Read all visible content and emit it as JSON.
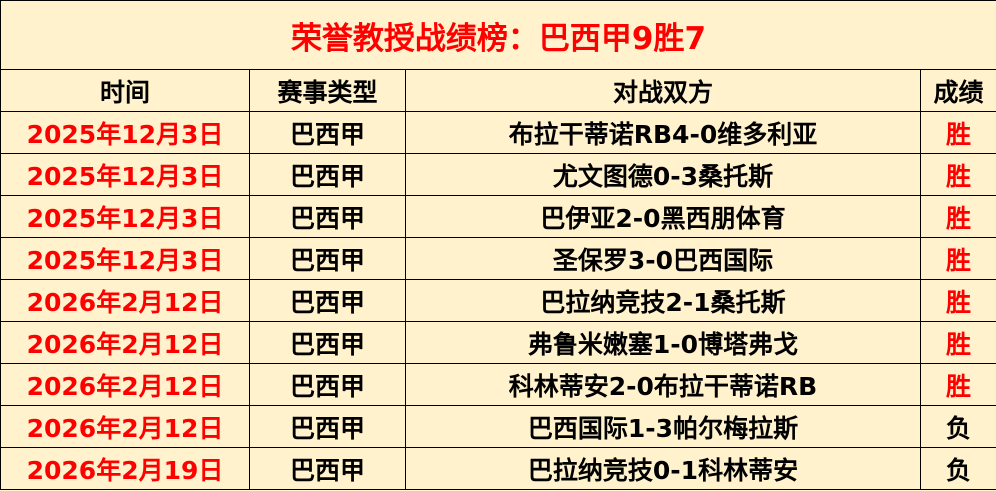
{
  "title": "荣誉教授战绩榜：巴西甲9胜7",
  "headers": [
    "时间",
    "赛事类型",
    "对战双方",
    "成绩"
  ],
  "rows": [
    {
      "date": "2025年12月3日",
      "league": "巴西甲",
      "match": "布拉干蒂诺RB4-0维多利亚",
      "result": "胜"
    },
    {
      "date": "2025年12月3日",
      "league": "巴西甲",
      "match": "尤文图德0-3桑托斯",
      "result": "胜"
    },
    {
      "date": "2025年12月3日",
      "league": "巴西甲",
      "match": "巴伊亚2-0黑西朋体育",
      "result": "胜"
    },
    {
      "date": "2025年12月3日",
      "league": "巴西甲",
      "match": "圣保罗3-0巴西国际",
      "result": "胜"
    },
    {
      "date": "2026年2月12日",
      "league": "巴西甲",
      "match": "巴拉纳竞技2-1桑托斯",
      "result": "胜"
    },
    {
      "date": "2026年2月12日",
      "league": "巴西甲",
      "match": "弗鲁米嫩塞1-0博塔弗戈",
      "result": "胜"
    },
    {
      "date": "2026年2月12日",
      "league": "巴西甲",
      "match": "科林蒂安2-0布拉干蒂诺RB",
      "result": "胜"
    },
    {
      "date": "2026年2月12日",
      "league": "巴西甲",
      "match": "巴西国际1-3帕尔梅拉斯",
      "result": "负"
    },
    {
      "date": "2026年2月19日",
      "league": "巴西甲",
      "match": "巴拉纳竞技0-1科林蒂安",
      "result": "负"
    }
  ],
  "colors": {
    "background": "#fff2cc",
    "accent": "#ff0000",
    "text": "#000000"
  }
}
